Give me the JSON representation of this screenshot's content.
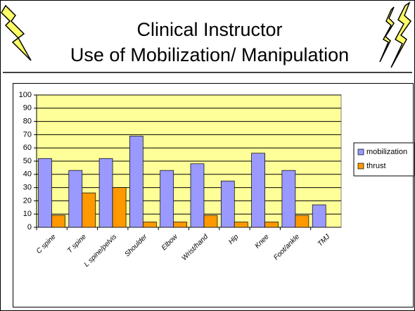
{
  "chart_data": {
    "type": "bar",
    "title_lines": [
      "Clinical Instructor",
      "Use of Mobilization/ Manipulation"
    ],
    "categories": [
      "C spine",
      "T spine",
      "L spine/pelvis",
      "Shoulder",
      "Elbow",
      "Wrist/hand",
      "Hip",
      "Knee",
      "Foot/ankle",
      "TMJ"
    ],
    "series": [
      {
        "name": "mobilization",
        "color": "#9999ff",
        "values": [
          52,
          43,
          52,
          69,
          43,
          48,
          35,
          56,
          43,
          17
        ]
      },
      {
        "name": "thrust",
        "color": "#ff9900",
        "values": [
          9,
          26,
          30,
          4,
          4,
          9,
          4,
          4,
          9,
          0
        ]
      }
    ],
    "ylim": [
      0,
      100
    ],
    "yticks": [
      0,
      10,
      20,
      30,
      40,
      50,
      60,
      70,
      80,
      90,
      100
    ],
    "grid": true,
    "legend": "right",
    "plot_background": "#ffff99"
  }
}
